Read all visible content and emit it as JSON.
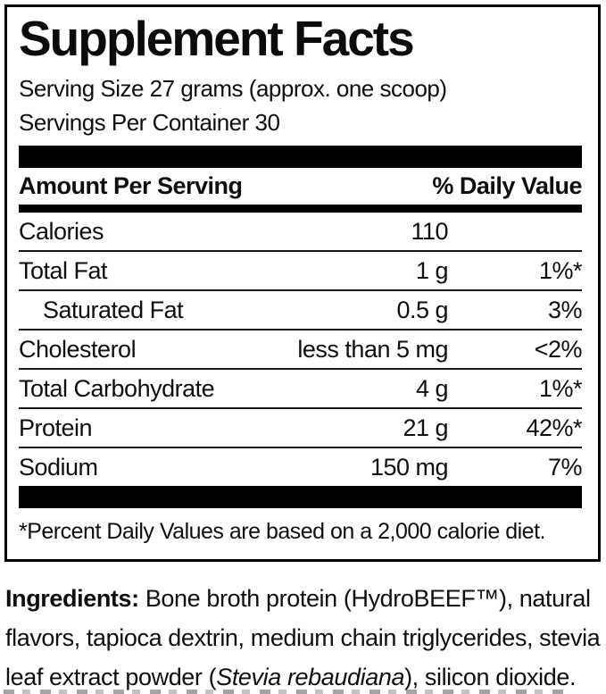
{
  "label": {
    "title": "Supplement Facts",
    "serving_size": "Serving Size 27 grams (approx. one scoop)",
    "servings_per_container": "Servings Per Container 30",
    "header": {
      "amount_col": "Amount Per Serving",
      "dv_col": "% Daily Value"
    },
    "rows": [
      {
        "name": "Calories",
        "amount": "110",
        "dv": "",
        "indent": false
      },
      {
        "name": "Total Fat",
        "amount": "1 g",
        "dv": "1%*",
        "indent": false
      },
      {
        "name": "Saturated Fat",
        "amount": "0.5 g",
        "dv": "3%",
        "indent": true
      },
      {
        "name": "Cholesterol",
        "amount": "less than 5 mg",
        "dv": "<2%",
        "indent": false
      },
      {
        "name": "Total Carbohydrate",
        "amount": "4 g",
        "dv": "1%*",
        "indent": false
      },
      {
        "name": "Protein",
        "amount": "21 g",
        "dv": "42%*",
        "indent": false
      },
      {
        "name": "Sodium",
        "amount": "150 mg",
        "dv": "7%",
        "indent": false
      }
    ],
    "footnote": "*Percent Daily Values are based on a 2,000 calorie diet."
  },
  "ingredients": {
    "lines": [
      [
        {
          "style": "bold",
          "text": "Ingredients:"
        },
        {
          "style": "plain",
          "text": " Bone broth protein (HydroBEEF™), natural"
        }
      ],
      [
        {
          "style": "plain",
          "text": "flavors, tapioca dextrin, medium chain triglycerides, stevia"
        }
      ],
      [
        {
          "style": "plain",
          "text": "leaf extract powder ("
        },
        {
          "style": "italic",
          "text": "Stevia rebaudiana"
        },
        {
          "style": "plain",
          "text": "), silicon dioxide."
        }
      ]
    ]
  },
  "colors": {
    "text": "#0f0f0f",
    "bar": "#000000",
    "background": "#ffffff"
  }
}
